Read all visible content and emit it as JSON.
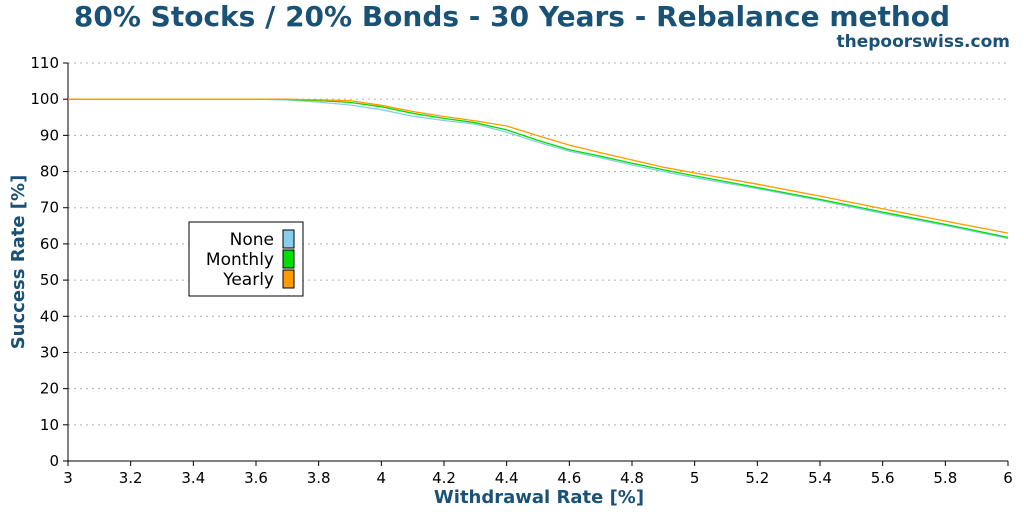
{
  "chart_data": {
    "type": "line",
    "title": "80% Stocks / 20% Bonds - 30 Years - Rebalance method",
    "watermark": "thepoorswiss.com",
    "xlabel": "Withdrawal Rate [%]",
    "ylabel": "Success Rate [%]",
    "xlim": [
      3,
      6
    ],
    "ylim": [
      0,
      110
    ],
    "xticks": [
      "3",
      "3.2",
      "3.4",
      "3.6",
      "3.8",
      "4",
      "4.2",
      "4.4",
      "4.6",
      "4.8",
      "5",
      "5.2",
      "5.4",
      "5.6",
      "5.8",
      "6"
    ],
    "yticks": [
      "0",
      "10",
      "20",
      "30",
      "40",
      "50",
      "60",
      "70",
      "80",
      "90",
      "100",
      "110"
    ],
    "grid": true,
    "legend_position": "center-left",
    "series": [
      {
        "name": "None",
        "color": "#87ceeb",
        "x": [
          3.0,
          3.6,
          3.7,
          3.8,
          3.9,
          4.0,
          4.1,
          4.2,
          4.3,
          4.4,
          4.5,
          4.6,
          4.7,
          4.8,
          4.9,
          5.0,
          5.2,
          5.4,
          5.6,
          5.8,
          6.0
        ],
        "y": [
          100,
          100,
          99.8,
          99.2,
          98.4,
          97.1,
          95.3,
          94.1,
          93.1,
          90.9,
          88.1,
          85.6,
          83.8,
          81.8,
          80.0,
          78.3,
          75.3,
          72.0,
          68.4,
          65.1,
          61.5
        ]
      },
      {
        "name": "Monthly",
        "color": "#00dd00",
        "x": [
          3.0,
          3.6,
          3.7,
          3.8,
          3.9,
          4.0,
          4.1,
          4.2,
          4.3,
          4.4,
          4.5,
          4.6,
          4.7,
          4.8,
          4.9,
          5.0,
          5.2,
          5.4,
          5.6,
          5.8,
          6.0
        ],
        "y": [
          100,
          100,
          99.9,
          99.6,
          99.1,
          97.9,
          96.1,
          94.7,
          93.5,
          91.5,
          88.6,
          86.0,
          84.2,
          82.3,
          80.5,
          78.8,
          75.6,
          72.3,
          68.8,
          65.4,
          61.8
        ]
      },
      {
        "name": "Yearly",
        "color": "#ff9900",
        "x": [
          3.0,
          3.6,
          3.7,
          3.8,
          3.9,
          4.0,
          4.1,
          4.2,
          4.3,
          4.4,
          4.5,
          4.6,
          4.7,
          4.8,
          4.9,
          5.0,
          5.2,
          5.4,
          5.6,
          5.8,
          6.0
        ],
        "y": [
          100,
          100,
          100,
          99.8,
          99.6,
          98.3,
          96.6,
          95.2,
          94.0,
          92.6,
          89.9,
          87.3,
          85.2,
          83.2,
          81.2,
          79.6,
          76.5,
          73.2,
          69.7,
          66.3,
          63.0
        ]
      }
    ]
  }
}
